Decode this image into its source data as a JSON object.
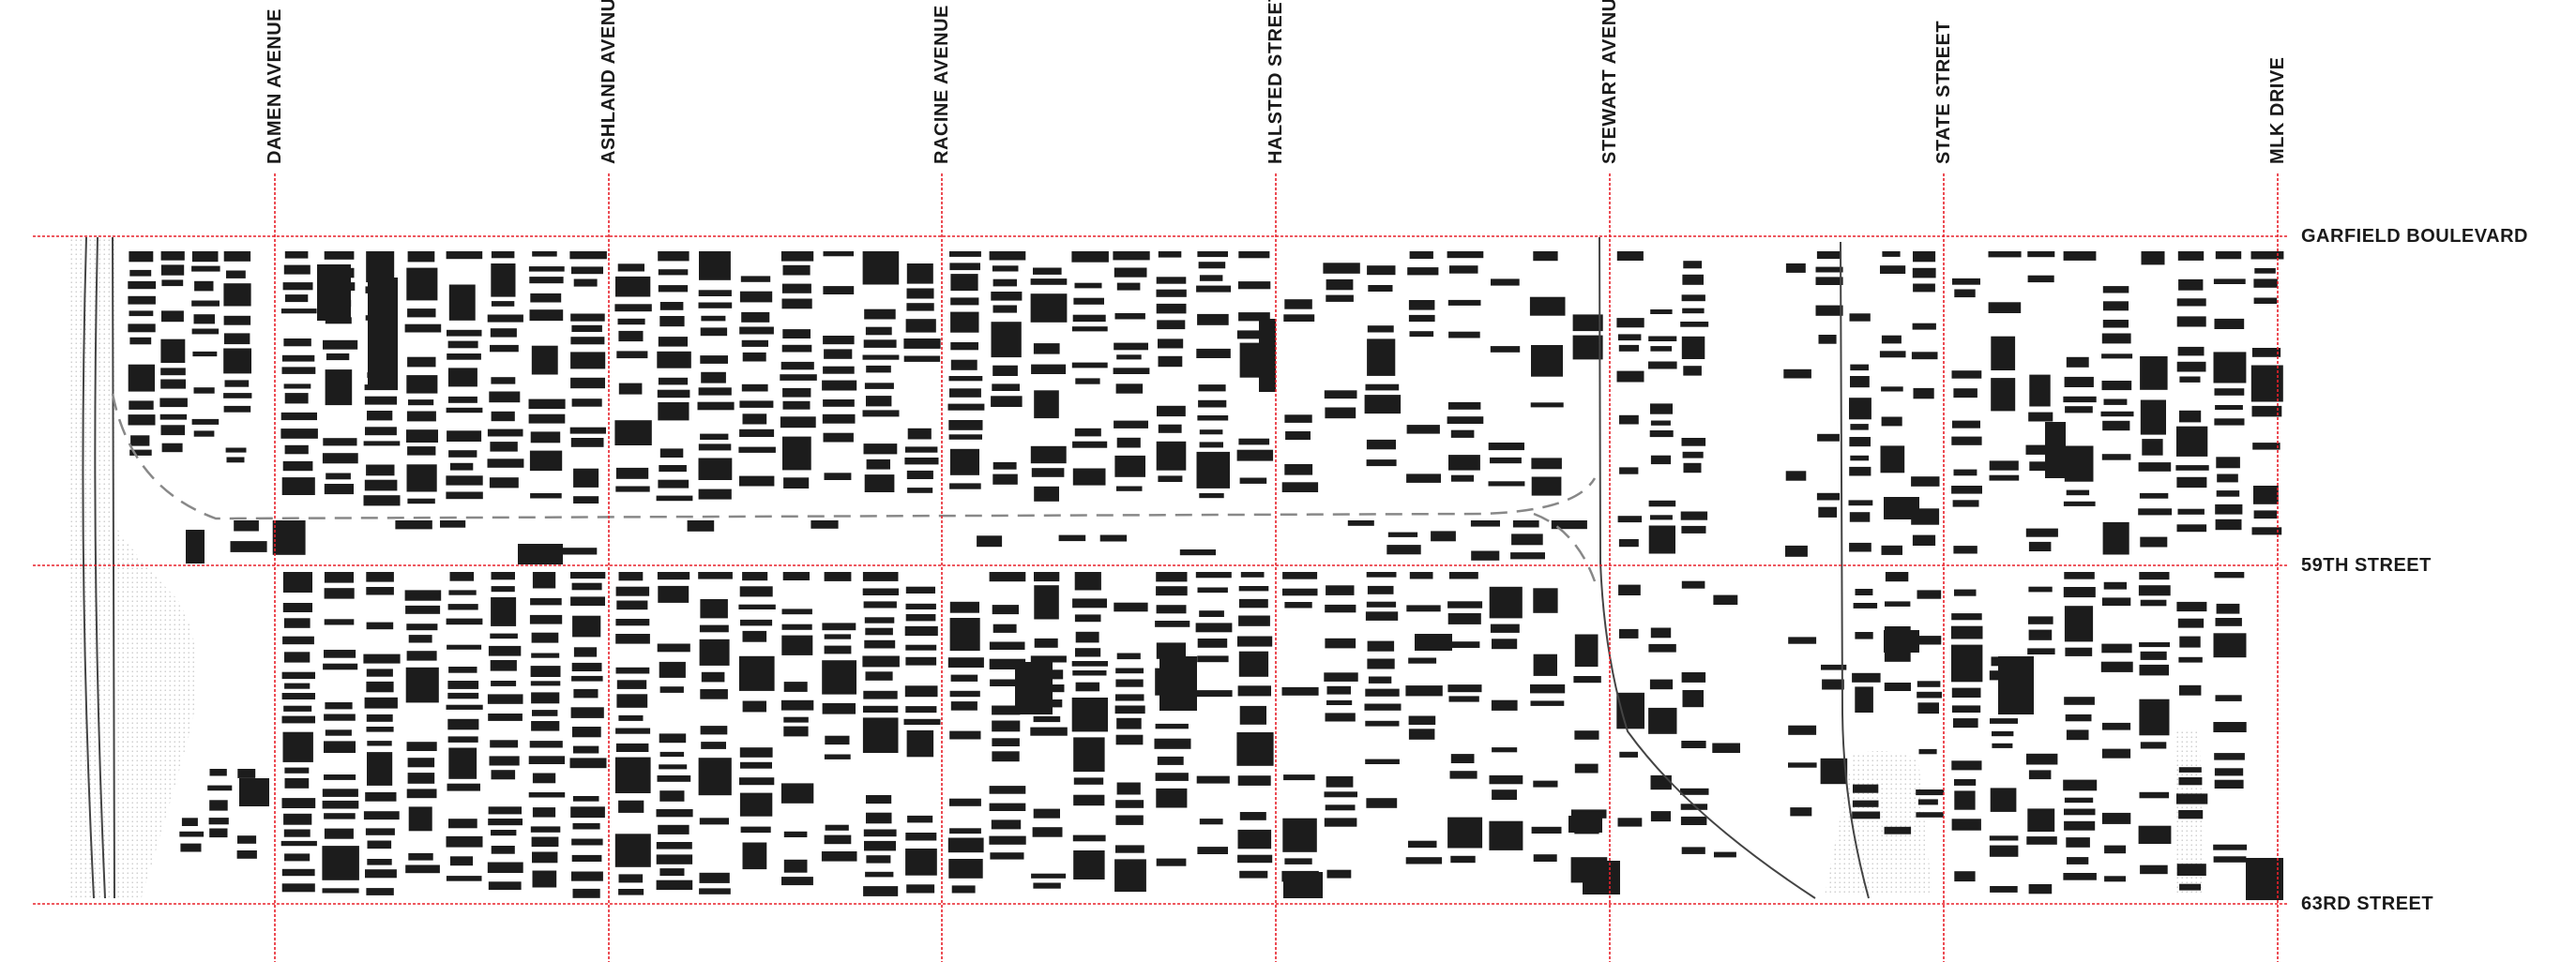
{
  "map": {
    "avenues": [
      {
        "name": "DAMEN AVENUE"
      },
      {
        "name": "ASHLAND AVENUE"
      },
      {
        "name": "RACINE AVENUE"
      },
      {
        "name": "HALSTED STREET"
      },
      {
        "name": "STEWART AVENUE"
      },
      {
        "name": "STATE STREET"
      },
      {
        "name": "MLK DRIVE"
      }
    ],
    "streets": [
      {
        "name": "GARFIELD BOULEVARD"
      },
      {
        "name": "59TH STREET"
      },
      {
        "name": "63RD STREET"
      }
    ],
    "colors": {
      "gridline": "#e8202a",
      "building": "#1c1c1c",
      "rail": "#444444",
      "background": "#ffffff"
    }
  }
}
